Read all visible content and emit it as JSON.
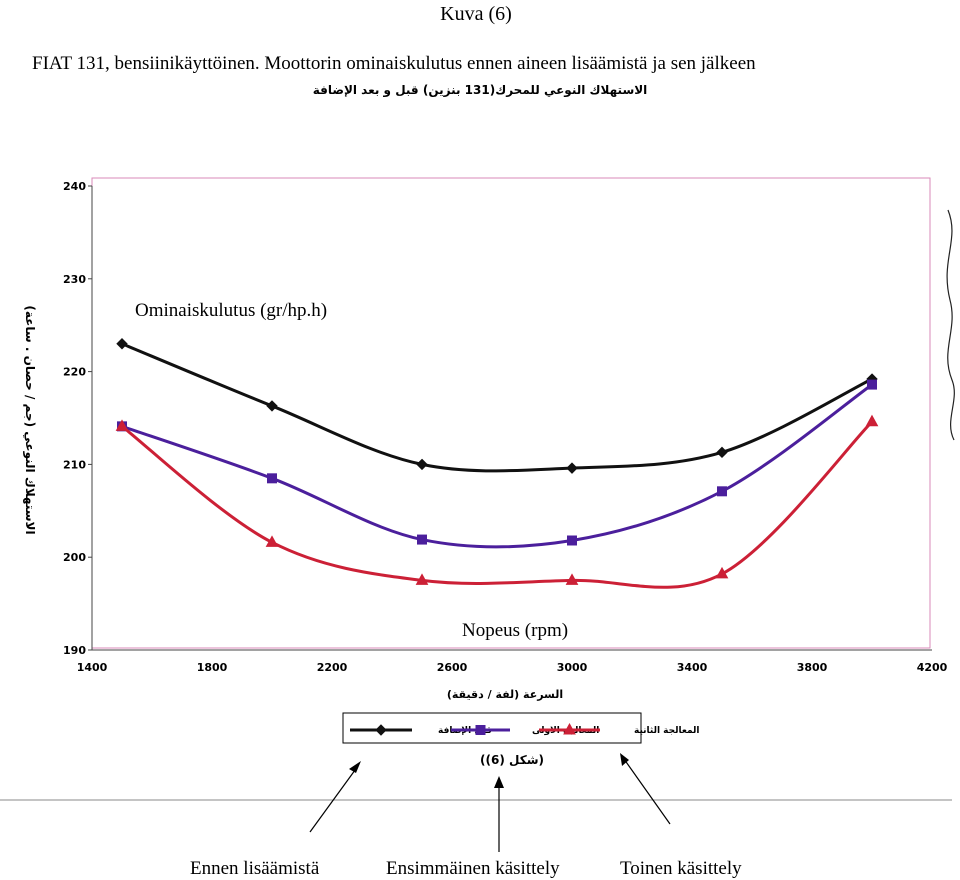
{
  "page": {
    "figure_number": "Kuva (6)",
    "caption": "FIAT 131, bensiinikäyttöinen. Moottorin ominaiskulutus ennen aineen lisäämistä ja sen jälkeen"
  },
  "scan": {
    "arabic_title": "الاستهلاك النوعي للمحرك(131 بنزين) قبل و بعد الإضافة",
    "arabic_ylabel": "الاستهلاك النوعي (جم / حصان . ساعة)",
    "arabic_xlabel": "السرعة (لفة / دقيقة)",
    "arabic_figure": "(شكل (6))"
  },
  "annotations": {
    "y_overlay": "Ominaiskulutus (gr/hp.h)",
    "x_overlay": "Nopeus (rpm)",
    "arrow_labels": [
      "Ennen lisäämistä",
      "Ensimmäinen käsittely",
      "Toinen käsittely"
    ]
  },
  "chart_data": {
    "type": "line",
    "x": [
      1500,
      2000,
      2500,
      3000,
      3500,
      4000
    ],
    "xlim": [
      1400,
      4200
    ],
    "ylim": [
      190,
      240
    ],
    "x_ticks": [
      1400,
      1800,
      2200,
      2600,
      3000,
      3400,
      3800,
      4200
    ],
    "y_ticks": [
      190,
      200,
      210,
      220,
      230,
      240
    ],
    "grid": false,
    "smooth": true,
    "legend_position": "bottom",
    "series": [
      {
        "name": "قبل الإضافة",
        "color": "#111111",
        "marker": "diamond",
        "values": [
          223,
          216.3,
          210,
          209.6,
          211.3,
          219.2
        ]
      },
      {
        "name": "المعالجة الاولى",
        "color": "#4b1f9c",
        "marker": "square",
        "values": [
          214.1,
          208.5,
          201.9,
          201.8,
          207.1,
          218.6
        ]
      },
      {
        "name": "المعالجة الثانية",
        "color": "#cc2036",
        "marker": "triangle",
        "values": [
          214.1,
          201.6,
          197.5,
          197.5,
          198.2,
          214.6
        ]
      }
    ]
  }
}
